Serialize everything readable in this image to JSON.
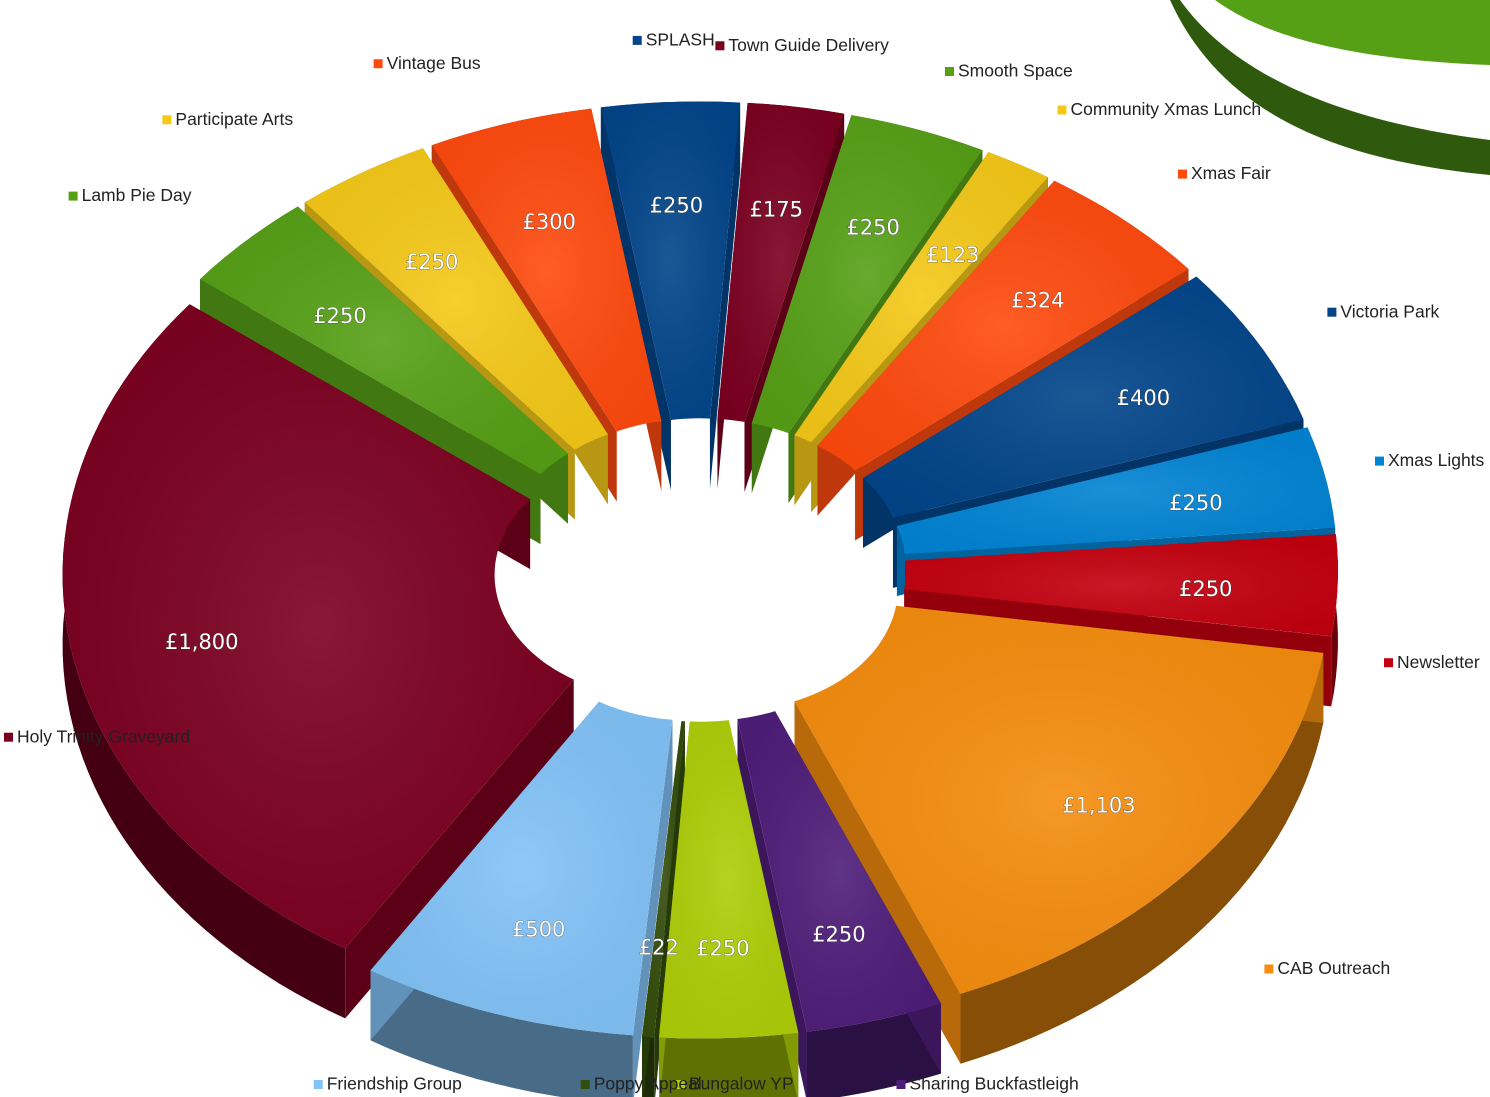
{
  "chart_data": {
    "type": "pie",
    "title": "",
    "exploded": true,
    "three_d": true,
    "slices": [
      {
        "label": "Town Guide Delivery",
        "value": 175,
        "display": "£175",
        "color": "#7b0020"
      },
      {
        "label": "Smooth Space",
        "value": 250,
        "display": "£250",
        "color": "#56a016"
      },
      {
        "label": "Community Xmas Lunch",
        "value": 123,
        "display": "£123",
        "color": "#f5c918"
      },
      {
        "label": "Xmas Fair",
        "value": 324,
        "display": "£324",
        "color": "#ff4a0e"
      },
      {
        "label": "Victoria Park",
        "value": 400,
        "display": "£400",
        "color": "#02458a"
      },
      {
        "label": "Xmas Lights",
        "value": 250,
        "display": "£250",
        "color": "#0284d4"
      },
      {
        "label": "Newsletter",
        "value": 250,
        "display": "£250",
        "color": "#c4000f"
      },
      {
        "label": "CAB Outreach",
        "value": 1103,
        "display": "£1,103",
        "color": "#f58d0e"
      },
      {
        "label": "Sharing Buckfastleigh",
        "value": 250,
        "display": "£250",
        "color": "#4e1d79"
      },
      {
        "label": "Bungalow YP",
        "value": 250,
        "display": "£250",
        "color": "#aece08"
      },
      {
        "label": "Poppy Appeal",
        "value": 22,
        "display": "£22",
        "color": "#334d0b"
      },
      {
        "label": "Friendship Group",
        "value": 500,
        "display": "£500",
        "color": "#82c3f8"
      },
      {
        "label": "Holy Trinity Graveyard",
        "value": 1800,
        "display": "£1,800",
        "color": "#7b0020"
      },
      {
        "label": "Lamb Pie Day",
        "value": 250,
        "display": "£250",
        "color": "#56a016"
      },
      {
        "label": "Participate Arts",
        "value": 250,
        "display": "£250",
        "color": "#f5c918"
      },
      {
        "label": "Vintage Bus",
        "value": 300,
        "display": "£300",
        "color": "#ff4a0e"
      },
      {
        "label": "SPLASH",
        "value": 250,
        "display": "£250",
        "color": "#02458a"
      }
    ]
  }
}
